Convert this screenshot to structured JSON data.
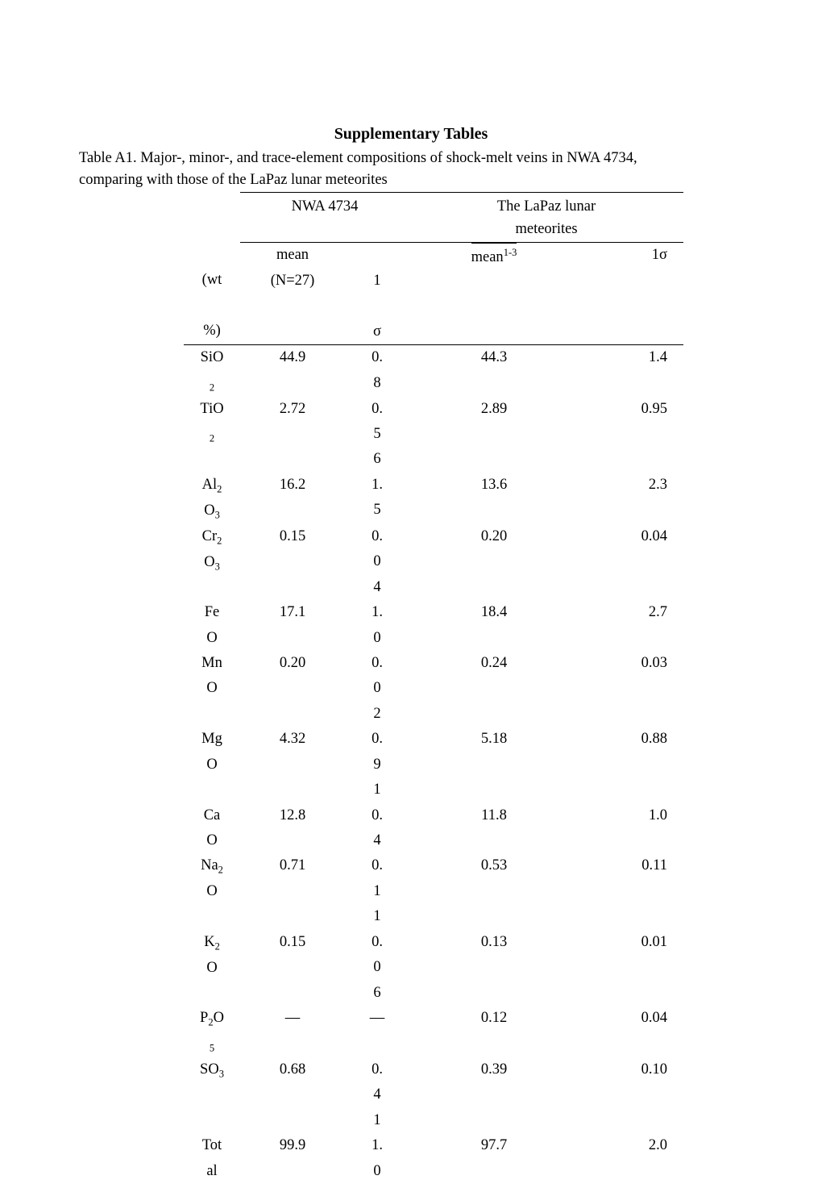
{
  "title": "Supplementary Tables",
  "caption_line1": " Table A1. Major-, minor-, and trace-element compositions of shock-melt veins in NWA 4734,",
  "caption_line2": "comparing with those of the LaPaz lunar meteorites",
  "header": {
    "group1": "NWA 4734",
    "group2_line1": "The LaPaz lunar",
    "group2_line2": "meteorites",
    "col1_line1": "(wt",
    "col1_line2": "%)",
    "col2_line1": "mean",
    "col2_line2": "(N=27)",
    "col3_line1": "1",
    "col3_line2": "σ",
    "col4": "mean",
    "col4_sup": "1-3",
    "col5": "1σ"
  },
  "rows": [
    {
      "label_html": "SiO<br><span class='small-num'>2</span>",
      "mean1": "44.9",
      "sig1": "0.<br>8",
      "mean2": "44.3",
      "sig2": "1.4"
    },
    {
      "label_html": "TiO<br><span class='small-num'>2</span>",
      "mean1": "2.72",
      "sig1": "0.<br>5<br>6",
      "mean2": "2.89",
      "sig2": "0.95"
    },
    {
      "label_html": "Al<span class='sub'>2</span><br>O<span class='sub'>3</span>",
      "mean1": "16.2",
      "sig1": "1.<br>5",
      "mean2": "13.6",
      "sig2": "2.3"
    },
    {
      "label_html": "Cr<span class='sub'>2</span><br>O<span class='sub'>3</span>",
      "mean1": "0.15",
      "sig1": "0.<br>0<br>4",
      "mean2": "0.20",
      "sig2": "0.04"
    },
    {
      "label_html": "Fe<br>O",
      "mean1": "17.1",
      "sig1": "1.<br>0",
      "mean2": "18.4",
      "sig2": "2.7"
    },
    {
      "label_html": "Mn<br>O",
      "mean1": "0.20",
      "sig1": "0.<br>0<br>2",
      "mean2": "0.24",
      "sig2": "0.03"
    },
    {
      "label_html": "Mg<br>O",
      "mean1": "4.32",
      "sig1": "0.<br>9<br>1",
      "mean2": "5.18",
      "sig2": "0.88"
    },
    {
      "label_html": "Ca<br>O",
      "mean1": "12.8",
      "sig1": "0.<br>4",
      "mean2": "11.8",
      "sig2": "1.0"
    },
    {
      "label_html": "Na<span class='sub'>2</span><br>O",
      "mean1": "0.71",
      "sig1": "0.<br>1<br>1",
      "mean2": "0.53",
      "sig2": "0.11"
    },
    {
      "label_html": "K<span class='sub'>2</span><br>O",
      "mean1": "0.15",
      "sig1": "0.<br>0<br>6",
      "mean2": "0.13",
      "sig2": "0.01"
    },
    {
      "label_html": "P<span class='sub'>2</span>O<br><span class='small-num'>5</span>",
      "mean1": "—",
      "sig1": "—",
      "mean2": "0.12",
      "sig2": "0.04"
    },
    {
      "label_html": "SO<span class='sub'>3</span>",
      "mean1": "0.68",
      "sig1": "0.<br>4<br>1",
      "mean2": "0.39",
      "sig2": "0.10"
    },
    {
      "label_html": "Tot<br>al",
      "mean1": "99.9",
      "sig1": "1.<br>0",
      "mean2": "97.7",
      "sig2": "2.0"
    }
  ]
}
